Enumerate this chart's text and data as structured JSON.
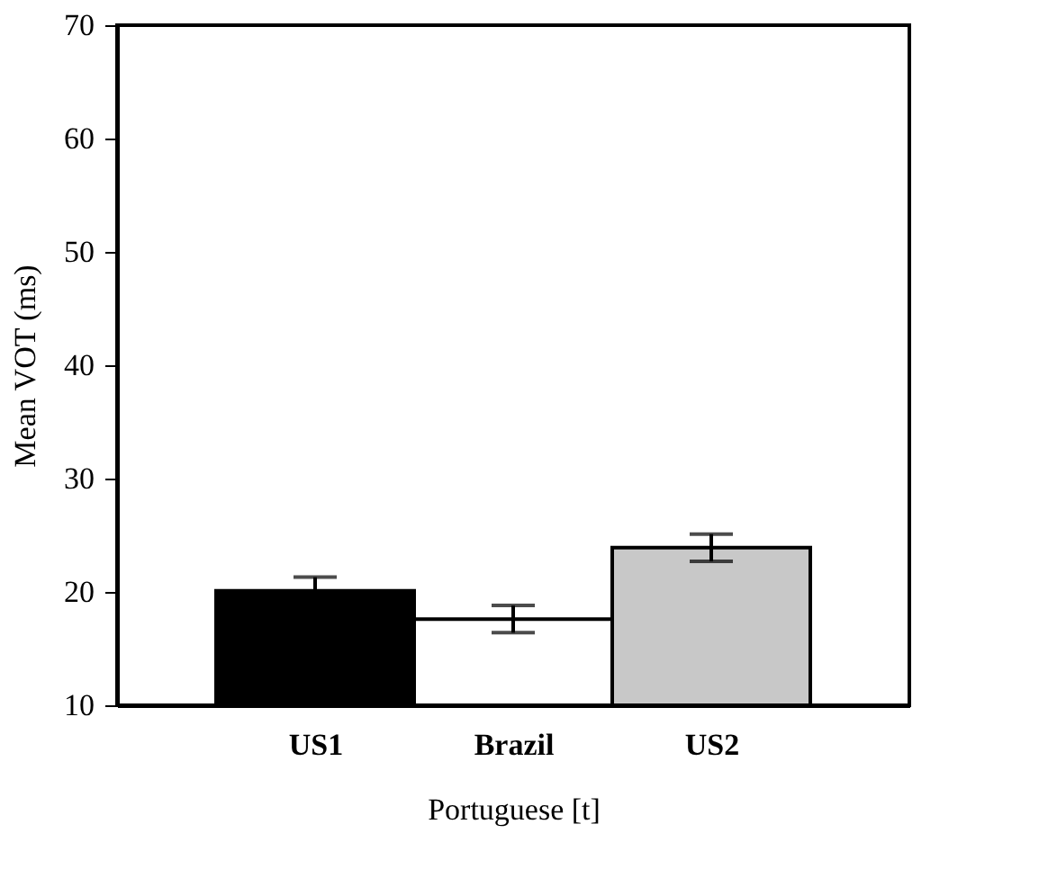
{
  "chart_data": {
    "type": "bar",
    "xlabel": "Portuguese [t]",
    "ylabel": "Mean VOT (ms)",
    "categories": [
      "US1",
      "Brazil",
      "US2"
    ],
    "values": [
      20.1,
      17.6,
      23.9
    ],
    "errors": [
      1.2,
      1.2,
      1.2
    ],
    "colors": [
      "#000000",
      "#ffffff",
      "#c8c8c8"
    ],
    "ylim": [
      10,
      70
    ],
    "yticks": [
      10,
      20,
      30,
      40,
      50,
      60,
      70
    ],
    "grid": false
  }
}
